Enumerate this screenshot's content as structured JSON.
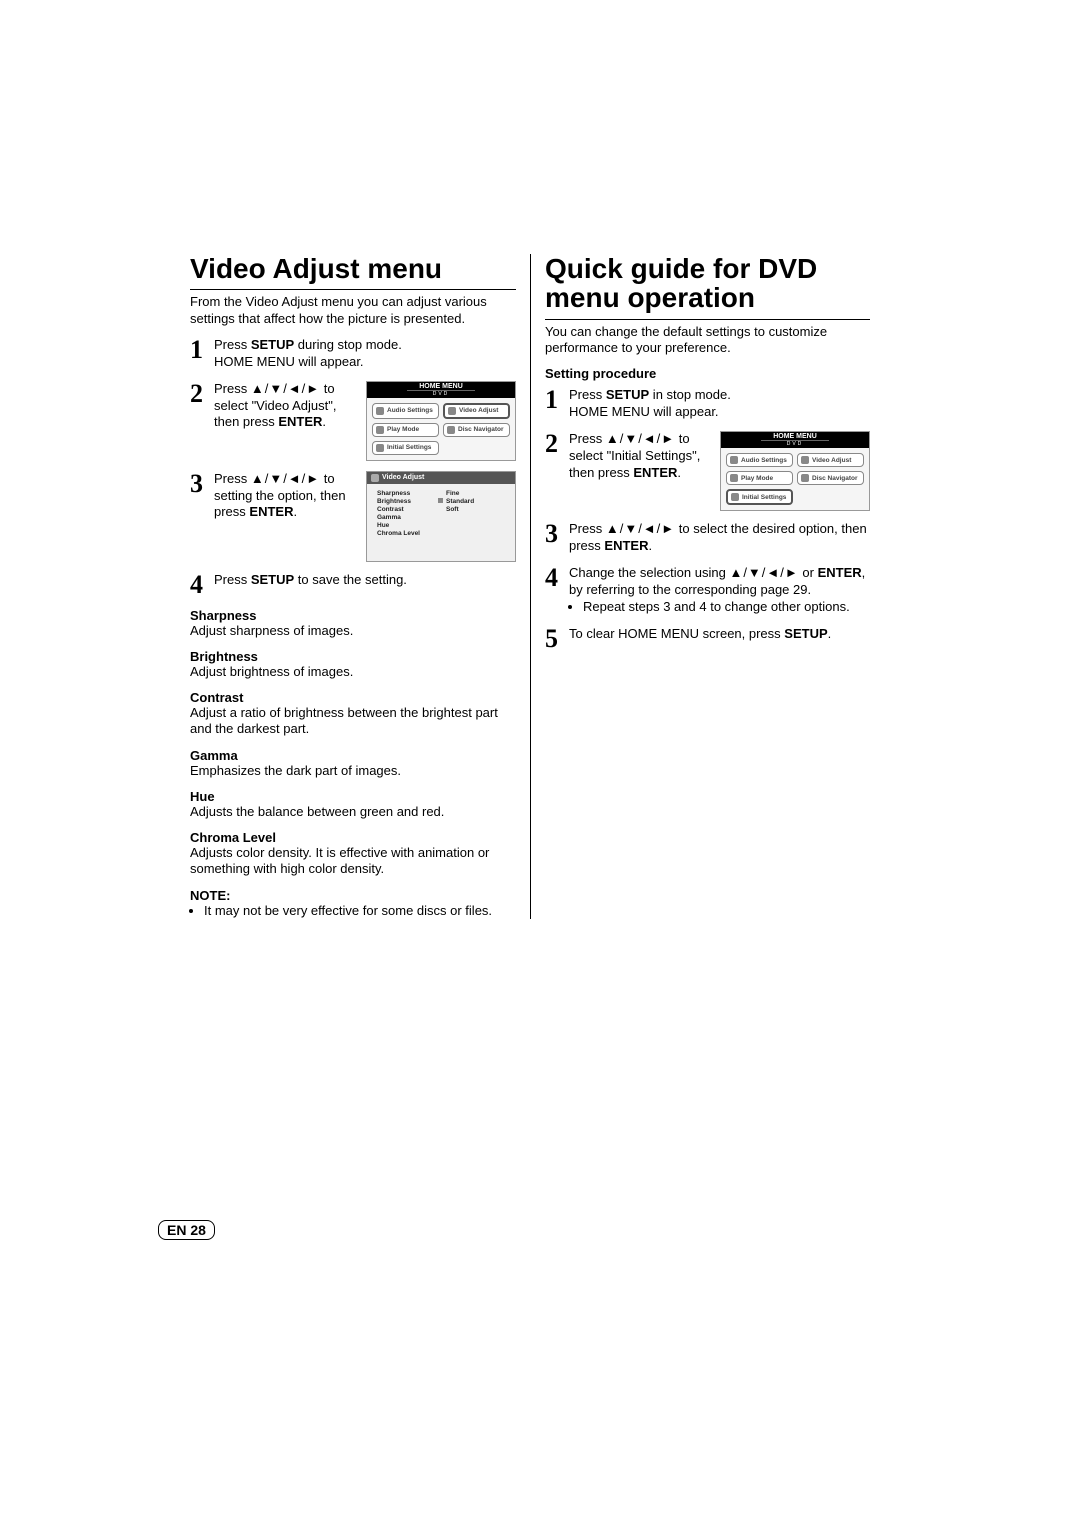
{
  "page_number": "EN 28",
  "left": {
    "title": "Video Adjust menu",
    "intro": "From the Video Adjust menu you can adjust various settings that affect how the picture is presented.",
    "steps": [
      {
        "a": "Press ",
        "b": "SETUP",
        "c": " during stop mode.",
        "d": "HOME MENU will appear."
      },
      {
        "a": "Press ",
        "arrows": "▲/▼/◄/►",
        "c": " to select \"Video Adjust\", then press ",
        "b": "ENTER",
        "e": "."
      },
      {
        "a": "Press ",
        "arrows": "▲/▼/◄/►",
        "c": " to setting the option, then press ",
        "b": "ENTER",
        "e": "."
      },
      {
        "a": "Press ",
        "b": "SETUP",
        "c": " to save the setting."
      }
    ],
    "defs": [
      {
        "term": "Sharpness",
        "desc": "Adjust sharpness of images."
      },
      {
        "term": "Brightness",
        "desc": "Adjust brightness of images."
      },
      {
        "term": "Contrast",
        "desc": "Adjust a ratio of brightness between the brightest part and the darkest part."
      },
      {
        "term": "Gamma",
        "desc": "Emphasizes the dark part of images."
      },
      {
        "term": "Hue",
        "desc": "Adjusts the balance between green and red."
      },
      {
        "term": "Chroma Level",
        "desc": "Adjusts color density. It is effective with animation or something with high color density."
      }
    ],
    "note_title": "NOTE:",
    "note_item": "It may not be very effective for some discs or files."
  },
  "right": {
    "title": "Quick guide for DVD menu operation",
    "intro": "You can change the default settings to customize performance to your preference.",
    "subhead": "Setting procedure",
    "steps": [
      {
        "a": "Press ",
        "b": "SETUP",
        "c": " in stop mode.",
        "d": "HOME MENU will appear."
      },
      {
        "a": "Press ",
        "arrows": "▲/▼/◄/►",
        "c": " to select \"Initial Settings\", then press ",
        "b": "ENTER",
        "e": "."
      },
      {
        "a": "Press ",
        "arrows": "▲/▼/◄/►",
        "c": " to select the desired option, then press ",
        "b": "ENTER",
        "e": "."
      },
      {
        "a": "Change the selection using ",
        "arrows": "▲/▼/◄/►",
        "c": " or ",
        "b": "ENTER",
        "e": ", by referring to the corresponding page 29.",
        "bullet": "Repeat steps 3 and 4 to change other options."
      },
      {
        "a": "To clear HOME MENU screen, press ",
        "b": "SETUP",
        "e": "."
      }
    ]
  },
  "home_menu": {
    "title": "HOME MENU",
    "sub": "DVD",
    "items": [
      "Audio Settings",
      "Video Adjust",
      "Play Mode",
      "Disc Navigator",
      "Initial Settings"
    ]
  },
  "video_adjust_menu": {
    "title": "Video Adjust",
    "labels": [
      "Sharpness",
      "Brightness",
      "Contrast",
      "Gamma",
      "Hue",
      "Chroma Level"
    ],
    "values": [
      "Fine",
      "Standard",
      "Soft"
    ]
  }
}
